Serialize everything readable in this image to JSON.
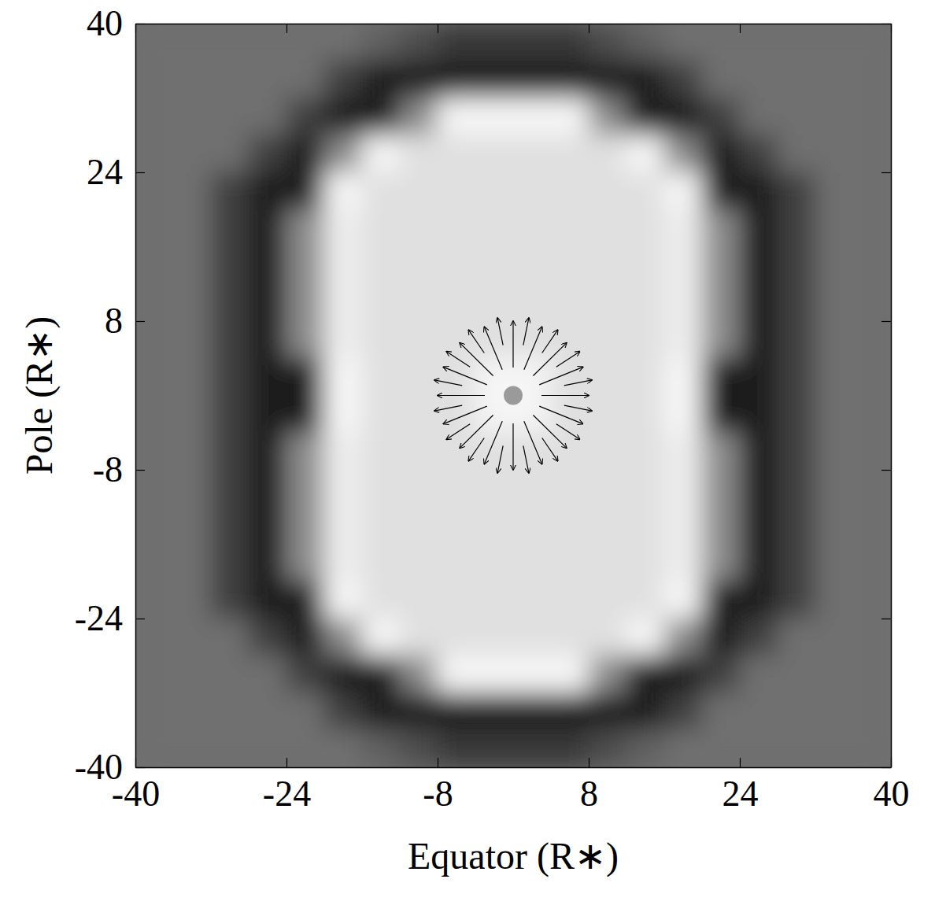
{
  "chart_data": {
    "type": "heatmap",
    "xlabel": "Equator (R∗)",
    "ylabel": "Pole (R∗)",
    "xlim": [
      -40,
      40
    ],
    "ylim": [
      -40,
      40
    ],
    "xticks": [
      -40,
      -24,
      -8,
      8,
      24,
      40
    ],
    "yticks": [
      -40,
      -24,
      -8,
      8,
      24,
      40
    ],
    "heatmap": {
      "x": [
        -38,
        -34,
        -30,
        -26,
        -22,
        -18,
        -14,
        -10,
        -6,
        -2,
        2,
        6,
        10,
        14,
        18,
        22,
        26,
        30,
        34,
        38
      ],
      "y": [
        38,
        34,
        30,
        26,
        22,
        18,
        14,
        10,
        6,
        2,
        -2,
        -6,
        -10,
        -14,
        -18,
        -22,
        -26,
        -30,
        -34,
        -38
      ],
      "zlim": [
        0,
        100
      ],
      "z": [
        [
          44,
          44,
          44,
          44,
          44,
          44,
          38,
          30,
          22,
          22,
          22,
          22,
          30,
          38,
          44,
          44,
          44,
          44,
          44,
          44
        ],
        [
          44,
          44,
          44,
          44,
          44,
          25,
          12,
          12,
          12,
          12,
          12,
          12,
          12,
          12,
          25,
          44,
          44,
          44,
          44,
          44
        ],
        [
          44,
          44,
          44,
          44,
          25,
          12,
          12,
          55,
          97,
          97,
          97,
          97,
          55,
          12,
          12,
          25,
          44,
          44,
          44,
          44
        ],
        [
          44,
          44,
          44,
          25,
          12,
          55,
          97,
          88,
          88,
          88,
          88,
          88,
          88,
          97,
          55,
          12,
          25,
          44,
          44,
          44
        ],
        [
          44,
          44,
          25,
          12,
          12,
          97,
          88,
          88,
          88,
          88,
          88,
          88,
          88,
          88,
          97,
          12,
          12,
          25,
          44,
          44
        ],
        [
          44,
          44,
          25,
          12,
          55,
          93,
          88,
          88,
          88,
          88,
          88,
          88,
          88,
          88,
          93,
          55,
          12,
          25,
          44,
          44
        ],
        [
          44,
          44,
          25,
          12,
          55,
          93,
          88,
          88,
          88,
          88,
          88,
          88,
          88,
          88,
          93,
          55,
          12,
          25,
          44,
          44
        ],
        [
          44,
          44,
          25,
          12,
          55,
          93,
          88,
          88,
          88,
          88,
          88,
          88,
          88,
          88,
          93,
          55,
          12,
          25,
          44,
          44
        ],
        [
          44,
          44,
          25,
          12,
          55,
          93,
          88,
          88,
          88,
          88,
          88,
          88,
          88,
          88,
          93,
          55,
          12,
          25,
          44,
          44
        ],
        [
          44,
          44,
          25,
          12,
          12,
          97,
          88,
          88,
          88,
          96,
          96,
          88,
          88,
          88,
          97,
          12,
          12,
          25,
          44,
          44
        ],
        [
          44,
          44,
          25,
          12,
          12,
          97,
          88,
          88,
          88,
          96,
          96,
          88,
          88,
          88,
          97,
          12,
          12,
          25,
          44,
          44
        ],
        [
          44,
          44,
          25,
          12,
          55,
          93,
          88,
          88,
          88,
          88,
          88,
          88,
          88,
          88,
          93,
          55,
          12,
          25,
          44,
          44
        ],
        [
          44,
          44,
          25,
          12,
          55,
          93,
          88,
          88,
          88,
          88,
          88,
          88,
          88,
          88,
          93,
          55,
          12,
          25,
          44,
          44
        ],
        [
          44,
          44,
          25,
          12,
          55,
          93,
          88,
          88,
          88,
          88,
          88,
          88,
          88,
          88,
          93,
          55,
          12,
          25,
          44,
          44
        ],
        [
          44,
          44,
          25,
          12,
          55,
          93,
          88,
          88,
          88,
          88,
          88,
          88,
          88,
          88,
          93,
          55,
          12,
          25,
          44,
          44
        ],
        [
          44,
          44,
          25,
          12,
          12,
          97,
          88,
          88,
          88,
          88,
          88,
          88,
          88,
          88,
          97,
          12,
          12,
          25,
          44,
          44
        ],
        [
          44,
          44,
          44,
          25,
          12,
          55,
          97,
          88,
          88,
          88,
          88,
          88,
          88,
          97,
          55,
          12,
          25,
          44,
          44,
          44
        ],
        [
          44,
          44,
          44,
          44,
          25,
          12,
          12,
          55,
          97,
          97,
          97,
          97,
          55,
          12,
          12,
          25,
          44,
          44,
          44,
          44
        ],
        [
          44,
          44,
          44,
          44,
          44,
          25,
          12,
          12,
          12,
          12,
          12,
          12,
          12,
          12,
          25,
          44,
          44,
          44,
          44,
          44
        ],
        [
          44,
          44,
          44,
          44,
          44,
          44,
          38,
          30,
          22,
          22,
          22,
          22,
          30,
          38,
          44,
          44,
          44,
          44,
          44,
          44
        ]
      ]
    },
    "vectors": {
      "x": [
        3,
        2.77,
        2.12,
        1.15,
        0,
        -1.15,
        -2.12,
        -2.77,
        -3,
        -2.77,
        -2.12,
        -1.15,
        0,
        1.15,
        2.12,
        2.77,
        5.4,
        4.57,
        3.06,
        1.07,
        -1.07,
        -3.06,
        -4.57,
        -5.4,
        -5.4,
        -4.57,
        -3.06,
        -1.07,
        1.07,
        3.06,
        4.57,
        5.4
      ],
      "y": [
        0,
        1.15,
        2.12,
        2.77,
        3,
        2.77,
        2.12,
        1.15,
        0,
        -1.15,
        -2.12,
        -2.77,
        -3,
        -2.77,
        -2.12,
        -1.15,
        1.07,
        3.06,
        4.57,
        5.4,
        5.4,
        4.57,
        3.06,
        1.07,
        -1.07,
        -3.06,
        -4.57,
        -5.4,
        -5.4,
        -4.57,
        -3.06,
        -1.07
      ],
      "u": [
        5,
        4.62,
        3.54,
        1.91,
        0,
        -1.91,
        -3.54,
        -4.62,
        -5,
        -4.62,
        -3.54,
        -1.91,
        0,
        1.91,
        3.54,
        4.62,
        2.94,
        2.49,
        1.67,
        0.59,
        -0.59,
        -1.67,
        -2.49,
        -2.94,
        -2.94,
        -2.49,
        -1.67,
        -0.59,
        0.59,
        1.67,
        2.49,
        2.94
      ],
      "v": [
        0,
        1.91,
        3.54,
        4.62,
        5,
        4.62,
        3.54,
        1.91,
        0,
        -1.91,
        -3.54,
        -4.62,
        -5,
        -4.62,
        -3.54,
        -1.91,
        0.59,
        1.67,
        2.49,
        2.94,
        2.94,
        2.49,
        1.67,
        0.59,
        -0.59,
        -1.67,
        -2.49,
        -2.94,
        -2.94,
        -2.49,
        -1.67,
        -0.59
      ]
    },
    "star": {
      "x": 0,
      "y": 0,
      "radius": 1
    }
  }
}
